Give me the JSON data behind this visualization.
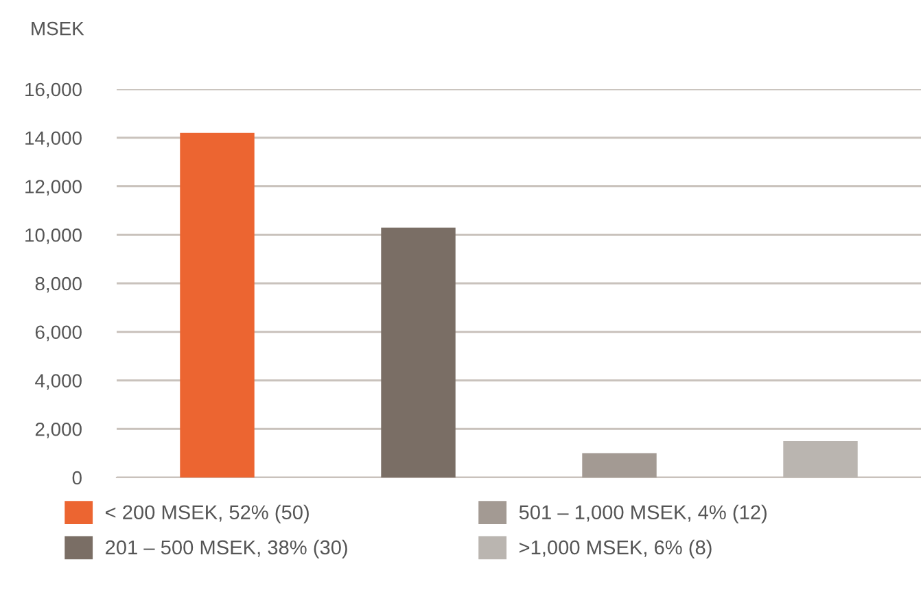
{
  "chart_data": {
    "type": "bar",
    "ylabel": "MSEK",
    "categories": [
      null,
      null,
      null,
      null
    ],
    "series": [
      {
        "name": "< 200 MSEK, 52% (50)",
        "color": "#ec6531",
        "values": [
          14200,
          null,
          null,
          null
        ]
      },
      {
        "name": "201 – 500 MSEK, 38% (30)",
        "color": "#7a6e65",
        "values": [
          null,
          10300,
          null,
          null
        ]
      },
      {
        "name": "501 – 1,000 MSEK, 4% (12)",
        "color": "#a39a93",
        "values": [
          null,
          null,
          1000,
          null
        ]
      },
      {
        "name": ">1,000 MSEK, 6% (8)",
        "color": "#bab5b0",
        "values": [
          null,
          null,
          null,
          1500
        ]
      }
    ],
    "ylim": [
      0,
      16000
    ],
    "yticks": [
      {
        "value": 0,
        "label": "0"
      },
      {
        "value": 2000,
        "label": "2,000"
      },
      {
        "value": 4000,
        "label": "4,000"
      },
      {
        "value": 6000,
        "label": "6,000"
      },
      {
        "value": 8000,
        "label": "8,000"
      },
      {
        "value": 10000,
        "label": "10,000"
      },
      {
        "value": 12000,
        "label": "12,000"
      },
      {
        "value": 14000,
        "label": "14,000"
      },
      {
        "value": 16000,
        "label": "16,000"
      }
    ],
    "grid": "y",
    "legend": "bottom"
  }
}
